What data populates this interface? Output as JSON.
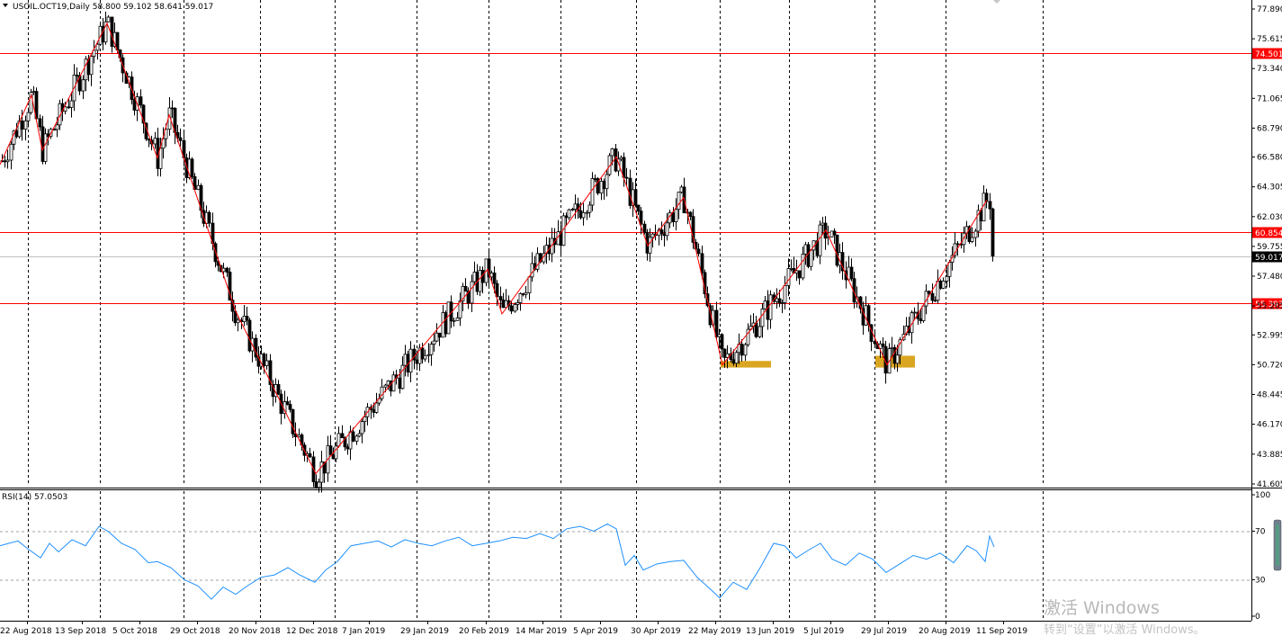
{
  "chart_data": [
    {
      "type": "candlestick",
      "symbol_header": "USOIL.OCT19,Daily  58.800 59.102 58.641 59.017",
      "ohlc_last": {
        "open": 58.8,
        "high": 59.102,
        "low": 58.641,
        "close": 59.017
      },
      "ylim": [
        41.6,
        78.0
      ],
      "y_ticks": [
        "77.890",
        "75.615",
        "73.340",
        "71.065",
        "68.790",
        "66.580",
        "64.305",
        "62.030",
        "59.755",
        "57.480",
        "55.205",
        "52.995",
        "50.720",
        "48.445",
        "46.170",
        "43.885",
        "41.605"
      ],
      "x_tick_labels": [
        "22 Aug 2018",
        "13 Sep 2018",
        "5 Oct 2018",
        "29 Oct 2018",
        "20 Nov 2018",
        "12 Dec 2018",
        "7 Jan 2019",
        "29 Jan 2019",
        "20 Feb 2019",
        "14 Mar 2019",
        "5 Apr 2019",
        "30 Apr 2019",
        "22 May 2019",
        "13 Jun 2019",
        "5 Jul 2019",
        "29 Jul 2019",
        "20 Aug 2019",
        "11 Sep 2019"
      ],
      "horizontal_levels": [
        {
          "value": 74.501,
          "label": "74.501",
          "color": "#ff0000"
        },
        {
          "value": 60.854,
          "label": "60.854",
          "color": "#ff0000"
        },
        {
          "value": 55.393,
          "label": "55.393",
          "color": "#ff0000"
        }
      ],
      "current_price": {
        "value": 59.017,
        "label": "59.017",
        "color": "#c0c0c0"
      },
      "zigzag_points": [
        [
          0,
          66.0
        ],
        [
          35,
          71.3
        ],
        [
          47,
          67.1
        ],
        [
          119,
          76.8
        ],
        [
          175,
          66.5
        ],
        [
          188,
          69.8
        ],
        [
          262,
          54.8
        ],
        [
          351,
          42.4
        ],
        [
          542,
          58.0
        ],
        [
          558,
          54.6
        ],
        [
          685,
          66.6
        ],
        [
          720,
          59.8
        ],
        [
          760,
          63.5
        ],
        [
          803,
          50.7
        ],
        [
          844,
          54.2
        ],
        [
          918,
          61.0
        ],
        [
          986,
          50.7
        ],
        [
          1097,
          63.3
        ]
      ],
      "zigzag_color": "#ff0000",
      "support_zones": [
        {
          "x0": 801,
          "x1": 857,
          "value_top": 51.0,
          "value_bottom": 50.5,
          "color": "#daa520"
        },
        {
          "x0": 973,
          "x1": 1017,
          "value_top": 51.4,
          "value_bottom": 50.5,
          "color": "#daa520"
        }
      ],
      "candle_color": "#000000",
      "grid": "vertical-dashed"
    },
    {
      "type": "line",
      "indicator_label": "RSI(14) 57.0503",
      "ylim": [
        0,
        100
      ],
      "y_ticks": [
        "100",
        "70",
        "30",
        "0"
      ],
      "levels": [
        70,
        30
      ],
      "series_color": "#1e90ff",
      "series_points": [
        [
          0,
          58
        ],
        [
          20,
          62
        ],
        [
          30,
          56
        ],
        [
          45,
          48
        ],
        [
          55,
          60
        ],
        [
          65,
          53
        ],
        [
          80,
          63
        ],
        [
          95,
          58
        ],
        [
          110,
          74
        ],
        [
          120,
          70
        ],
        [
          135,
          60
        ],
        [
          150,
          55
        ],
        [
          165,
          44
        ],
        [
          175,
          45
        ],
        [
          190,
          40
        ],
        [
          205,
          30
        ],
        [
          220,
          25
        ],
        [
          235,
          14
        ],
        [
          248,
          24
        ],
        [
          262,
          18
        ],
        [
          275,
          25
        ],
        [
          290,
          32
        ],
        [
          305,
          34
        ],
        [
          320,
          40
        ],
        [
          333,
          34
        ],
        [
          350,
          28
        ],
        [
          362,
          38
        ],
        [
          375,
          45
        ],
        [
          390,
          58
        ],
        [
          405,
          60
        ],
        [
          420,
          62
        ],
        [
          435,
          57
        ],
        [
          450,
          63
        ],
        [
          465,
          60
        ],
        [
          480,
          58
        ],
        [
          495,
          62
        ],
        [
          510,
          65
        ],
        [
          525,
          58
        ],
        [
          540,
          60
        ],
        [
          555,
          62
        ],
        [
          570,
          65
        ],
        [
          585,
          64
        ],
        [
          600,
          68
        ],
        [
          615,
          64
        ],
        [
          630,
          72
        ],
        [
          645,
          74
        ],
        [
          660,
          70
        ],
        [
          675,
          76
        ],
        [
          685,
          72
        ],
        [
          695,
          42
        ],
        [
          705,
          50
        ],
        [
          715,
          38
        ],
        [
          730,
          43
        ],
        [
          745,
          45
        ],
        [
          760,
          46
        ],
        [
          775,
          32
        ],
        [
          790,
          22
        ],
        [
          800,
          15
        ],
        [
          815,
          28
        ],
        [
          830,
          22
        ],
        [
          845,
          40
        ],
        [
          860,
          60
        ],
        [
          872,
          58
        ],
        [
          885,
          48
        ],
        [
          900,
          55
        ],
        [
          912,
          60
        ],
        [
          925,
          47
        ],
        [
          940,
          42
        ],
        [
          955,
          52
        ],
        [
          970,
          47
        ],
        [
          985,
          36
        ],
        [
          1000,
          43
        ],
        [
          1015,
          50
        ],
        [
          1030,
          47
        ],
        [
          1045,
          52
        ],
        [
          1060,
          44
        ],
        [
          1075,
          58
        ],
        [
          1085,
          54
        ],
        [
          1095,
          45
        ],
        [
          1100,
          66
        ],
        [
          1105,
          57
        ]
      ]
    }
  ],
  "watermark": {
    "line1": "激活 Windows",
    "line2": "转到“设置”以激活 Windows。"
  }
}
